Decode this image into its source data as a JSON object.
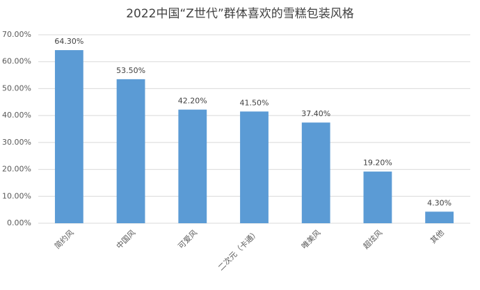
{
  "chart_data": {
    "type": "bar",
    "title": "2022中国“Z世代”群体喜欢的雪糕包装风格",
    "categories": [
      "简约风",
      "中国风",
      "可爱风",
      "二次元（卡通）",
      "唯美风",
      "超炫风",
      "其他"
    ],
    "values": [
      64.3,
      53.5,
      42.2,
      41.5,
      37.4,
      19.2,
      4.3
    ],
    "value_labels": [
      "64.30%",
      "53.50%",
      "42.20%",
      "41.50%",
      "37.40%",
      "19.20%",
      "4.30%"
    ],
    "color": "#5b9bd5",
    "ylim": [
      0,
      70
    ],
    "yticks": [
      {
        "value": 0,
        "label": "0.00%"
      },
      {
        "value": 10,
        "label": "10.00%"
      },
      {
        "value": 20,
        "label": "20.00%"
      },
      {
        "value": 30,
        "label": "30.00%"
      },
      {
        "value": 40,
        "label": "40.00%"
      },
      {
        "value": 50,
        "label": "50.00%"
      },
      {
        "value": 60,
        "label": "60.00%"
      },
      {
        "value": 70,
        "label": "70.00%"
      }
    ],
    "grid": true
  }
}
